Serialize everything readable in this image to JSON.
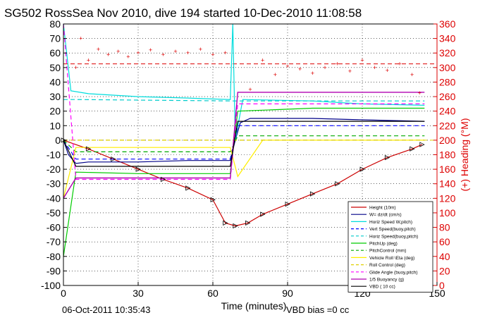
{
  "title": "SG502 RossSea Nov 2010, dive 194 started 10-Dec-2010 11:08:58",
  "footer": {
    "timestamp": "06-Oct-2011 10:35:43",
    "vbd_bias": "VBD bias =0 cc"
  },
  "colors": {
    "height": "#cc0000",
    "w": "#000088",
    "horiz_speed": "#00dddd",
    "vert_speed_buoy": "#0000ff",
    "horiz_speed_buoy": "#00cccc",
    "pitch_up": "#00cc00",
    "pitch_control": "#00aa00",
    "vehicle_roll": "#ffee00",
    "roll_control": "#e0d000",
    "glide_angle": "#ff00ff",
    "buoyancy": "#b000b0",
    "vbd": "#000000",
    "heading": "#dd0000"
  },
  "chart_data": {
    "type": "line",
    "title": "SG502 RossSea Nov 2010, dive 194 started 10-Dec-2010 11:08:58",
    "xlabel": "Time (minutes)",
    "ylabel": "",
    "ylabel_right": "(+) Heading (°M)",
    "xlim": [
      0,
      150
    ],
    "ylim": [
      -100,
      80
    ],
    "ylim_right": [
      0,
      360
    ],
    "xticks": [
      0,
      30,
      60,
      90,
      120,
      150
    ],
    "yticks": [
      -100,
      -90,
      -80,
      -70,
      -60,
      -50,
      -40,
      -30,
      -20,
      -10,
      0,
      10,
      20,
      30,
      40,
      50,
      60,
      70,
      80
    ],
    "yticks_right": [
      0,
      20,
      40,
      60,
      80,
      100,
      120,
      140,
      160,
      180,
      200,
      220,
      240,
      260,
      280,
      300,
      320,
      340,
      360
    ],
    "grid": true,
    "legend_position": "bottom-right",
    "legend": [
      "Height (10m)",
      "W= dz/dt (cm/s)",
      "Horiz Speed W,pitch)",
      "Vert Speed(buoy,pitch)",
      "Horiz Speed(buoy,pitch)",
      "PitchUp (deg)",
      "PitchControl (mm)",
      "Vehicle Roll \\Eta (deg)",
      "Roll Control (deg)",
      "Glide Angle (buoy,pitch)",
      "1/5 Buoyancy (g)",
      "VBD ( 10 cc)"
    ],
    "series": [
      {
        "name": "Height (10m)",
        "x": [
          0,
          10,
          20,
          30,
          40,
          50,
          60,
          65,
          69,
          74,
          80,
          90,
          100,
          110,
          120,
          130,
          140,
          144
        ],
        "y": [
          0,
          -6,
          -13,
          -20,
          -27,
          -33,
          -41,
          -57,
          -59,
          -57,
          -51,
          -44,
          -37,
          -30,
          -20,
          -12,
          -6,
          -3
        ]
      },
      {
        "name": "W= dz/dt (cm/s)",
        "x": [
          0,
          2,
          5,
          10,
          30,
          50,
          67,
          69,
          71,
          75,
          80,
          100,
          120,
          145
        ],
        "y": [
          0,
          -10,
          -16,
          -15,
          -15,
          -14,
          -14,
          0,
          12,
          15,
          15,
          15,
          14,
          13
        ]
      },
      {
        "name": "Horiz Speed W,pitch)",
        "x": [
          0,
          3,
          10,
          30,
          50,
          67,
          68,
          69,
          72,
          100,
          120,
          145
        ],
        "y": [
          80,
          34,
          32,
          30,
          29,
          28,
          80,
          0,
          28,
          27,
          25,
          24
        ]
      },
      {
        "name": "Vert Speed(buoy,pitch)",
        "x": [
          0,
          5,
          67,
          70,
          145
        ],
        "y": [
          0,
          -13,
          -13,
          10,
          10
        ]
      },
      {
        "name": "Horiz Speed(buoy,pitch)",
        "x": [
          0,
          5,
          67,
          70,
          145
        ],
        "y": [
          28,
          28,
          27,
          27,
          27
        ]
      },
      {
        "name": "PitchUp (deg)",
        "x": [
          0,
          5,
          30,
          67,
          70,
          100,
          145
        ],
        "y": [
          -80,
          -22,
          -23,
          -23,
          20,
          22,
          22
        ]
      },
      {
        "name": "PitchControl (mm)",
        "x": [
          0,
          5,
          67,
          70,
          145
        ],
        "y": [
          0,
          -8,
          -8,
          3,
          3
        ]
      },
      {
        "name": "Vehicle Roll \\Eta (deg)",
        "x": [
          0,
          5,
          20,
          40,
          67,
          70,
          80,
          100,
          145
        ],
        "y": [
          -40,
          -5,
          -5,
          -5,
          -5,
          -25,
          0,
          0,
          0
        ]
      },
      {
        "name": "Roll Control (deg)",
        "x": [
          0,
          67,
          68,
          145
        ],
        "y": [
          0,
          0,
          0,
          0
        ]
      },
      {
        "name": "Glide Angle (buoy,pitch)",
        "x": [
          0,
          5,
          67,
          70,
          145
        ],
        "y": [
          80,
          -27,
          -27,
          25,
          25
        ]
      },
      {
        "name": "1/5 Buoyancy (g)",
        "x": [
          0,
          5,
          67,
          70,
          145
        ],
        "y": [
          -40,
          -26,
          -26,
          33,
          33
        ]
      },
      {
        "name": "VBD ( 10 cc)",
        "x": [
          0,
          5,
          67,
          70,
          145
        ],
        "y": [
          0,
          -18,
          -18,
          13,
          13
        ]
      }
    ],
    "heading_series": {
      "axis": "right",
      "x": [
        5,
        7,
        10,
        14,
        18,
        22,
        26,
        30,
        35,
        40,
        45,
        50,
        55,
        60,
        65,
        75,
        80,
        85,
        90,
        95,
        100,
        105,
        110,
        115,
        120,
        125,
        130,
        135,
        140,
        143
      ],
      "y": [
        300,
        340,
        310,
        325,
        318,
        322,
        315,
        320,
        324,
        318,
        322,
        320,
        325,
        318,
        320,
        270,
        310,
        290,
        302,
        298,
        292,
        300,
        305,
        295,
        310,
        300,
        296,
        305,
        290,
        265
      ]
    },
    "reference_lines": [
      {
        "axis": "right",
        "value": 305,
        "color": "#dd0000",
        "style": "dashed"
      },
      {
        "axis": "left",
        "value": 0,
        "color": "#e0d000",
        "style": "dashed"
      }
    ]
  }
}
